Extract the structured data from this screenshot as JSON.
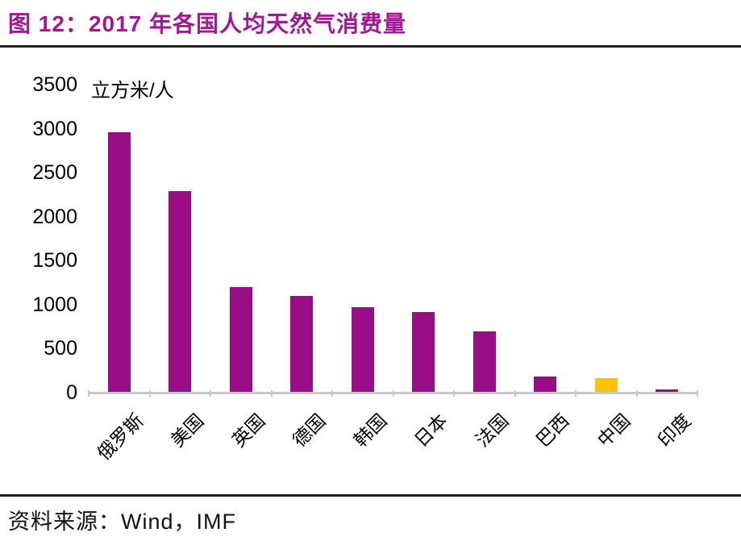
{
  "header": {
    "figure_label": "图 12：2017 年各国人均天然气消费量",
    "accent_color": "#A21793"
  },
  "chart_data": {
    "type": "bar",
    "title": "2017 年各国人均天然气消费量",
    "unit_label": "立方米/人",
    "categories": [
      "俄罗斯",
      "美国",
      "英国",
      "德国",
      "韩国",
      "日本",
      "法国",
      "巴西",
      "中国",
      "印度"
    ],
    "values": [
      2960,
      2290,
      1200,
      1100,
      975,
      920,
      700,
      185,
      165,
      40
    ],
    "bar_color_default": "#990E86",
    "bar_color_highlight": "#FFC000",
    "highlight_index": 8,
    "ylim": [
      0,
      3500
    ],
    "yticks": [
      0,
      500,
      1000,
      1500,
      2000,
      2500,
      3000,
      3500
    ],
    "grid": false,
    "legend": null,
    "xlabel": "",
    "ylabel": ""
  },
  "footer": {
    "source": "资料来源：Wind，IMF"
  }
}
